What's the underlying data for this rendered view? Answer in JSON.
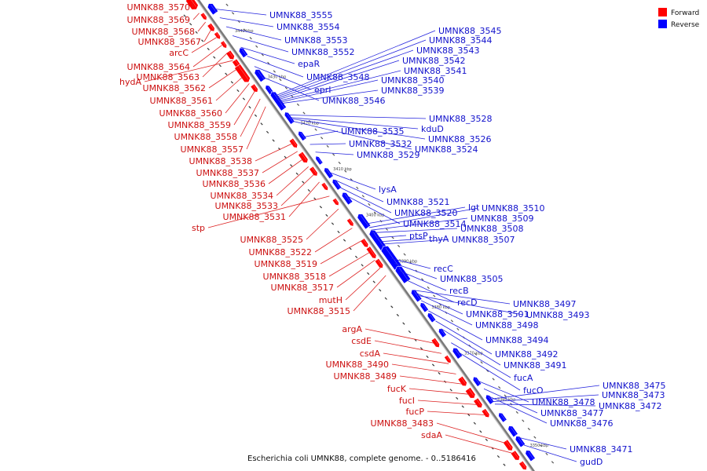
{
  "caption": "Escherichia coli UMNK88, complete genome. - 0..5186416",
  "legend": [
    {
      "label": "Forward",
      "color": "#ff0000"
    },
    {
      "label": "Reverse",
      "color": "#0000ff"
    }
  ],
  "colors": {
    "forward": "#ff0000",
    "reverse": "#0000ff",
    "forward_label": "#cc1111",
    "reverse_label": "#1111cc",
    "backbone": "#7a7a7a"
  },
  "ticks": [
    "3440 kbp",
    "3430 kbp",
    "3420 kbp",
    "3410 kbp",
    "3400 kbp",
    "3390 kbp",
    "3380 kbp",
    "3370 kbp",
    "3360 kbp",
    "3350 kbp"
  ],
  "forward_genes": [
    "UMNK88_3570",
    "UMNK88_3569",
    "UMNK88_3568",
    "UMNK88_3567",
    "arcC",
    "UMNK88_3564",
    "UMNK88_3563",
    "hydA",
    "UMNK88_3562",
    "UMNK88_3561",
    "UMNK88_3560",
    "UMNK88_3559",
    "UMNK88_3558",
    "UMNK88_3557",
    "UMNK88_3538",
    "UMNK88_3537",
    "UMNK88_3536",
    "UMNK88_3534",
    "UMNK88_3533",
    "UMNK88_3531",
    "stp",
    "UMNK88_3525",
    "UMNK88_3522",
    "UMNK88_3519",
    "UMNK88_3518",
    "UMNK88_3517",
    "mutH",
    "UMNK88_3515",
    "argA",
    "csdE",
    "csdA",
    "UMNK88_3490",
    "UMNK88_3489",
    "fucK",
    "fucI",
    "fucP",
    "UMNK88_3483",
    "sdaA"
  ],
  "reverse_genes": [
    "UMNK88_3555",
    "UMNK88_3554",
    "UMNK88_3553",
    "UMNK88_3552",
    "epaR",
    "UMNK88_3548",
    "eprI",
    "UMNK88_3546",
    "UMNK88_3545",
    "UMNK88_3544",
    "UMNK88_3543",
    "UMNK88_3542",
    "UMNK88_3541",
    "UMNK88_3540",
    "UMNK88_3539",
    "UMNK88_3528",
    "kduD",
    "UMNK88_3526",
    "UMNK88_3524",
    "UMNK88_3535",
    "UMNK88_3532",
    "UMNK88_3529",
    "lysA",
    "UMNK88_3521",
    "UMNK88_3520",
    "UMNK88_3514",
    "lgt",
    "UMNK88_3510",
    "UMNK88_3509",
    "UMNK88_3508",
    "ptsP",
    "thyA",
    "UMNK88_3507",
    "recC",
    "UMNK88_3505",
    "recB",
    "recD",
    "UMNK88_3497",
    "UMNK88_3501",
    "UMNK88_3493",
    "UMNK88_3498",
    "UMNK88_3494",
    "UMNK88_3492",
    "UMNK88_3491",
    "fucA",
    "fucO",
    "UMNK88_3478",
    "UMNK88_3477",
    "UMNK88_3476",
    "UMNK88_3475",
    "UMNK88_3473",
    "UMNK88_3472",
    "UMNK88_3471",
    "gudD"
  ]
}
